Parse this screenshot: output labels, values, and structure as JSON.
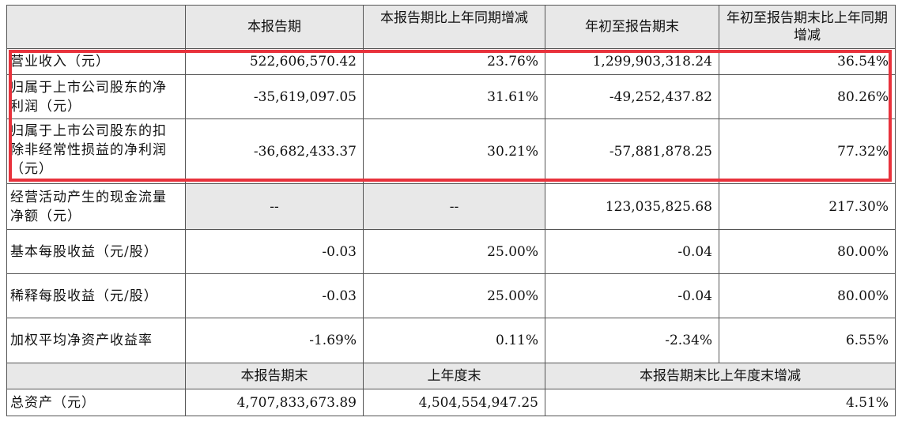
{
  "header": {
    "col1": "本报告期",
    "col2": "本报告期比上年同期增减",
    "col3": "年初至报告期末",
    "col4": "年初至报告期末比上年同期增减"
  },
  "rows": [
    {
      "label": "营业收入（元）",
      "v1": "522,606,570.42",
      "v2": "23.76%",
      "v3": "1,299,903,318.24",
      "v4": "36.54%"
    },
    {
      "label": "归属于上市公司股东的净利润（元）",
      "v1": "-35,619,097.05",
      "v2": "31.61%",
      "v3": "-49,252,437.82",
      "v4": "80.26%"
    },
    {
      "label": "归属于上市公司股东的扣除非经常性损益的净利润（元）",
      "v1": "-36,682,433.37",
      "v2": "30.21%",
      "v3": "-57,881,878.25",
      "v4": "77.32%"
    },
    {
      "label": "经营活动产生的现金流量净额（元）",
      "v1": "--",
      "v2": "--",
      "v3": "123,035,825.68",
      "v4": "217.30%"
    },
    {
      "label": "基本每股收益（元/股）",
      "v1": "-0.03",
      "v2": "25.00%",
      "v3": "-0.04",
      "v4": "80.00%"
    },
    {
      "label": "稀释每股收益（元/股）",
      "v1": "-0.03",
      "v2": "25.00%",
      "v3": "-0.04",
      "v4": "80.00%"
    },
    {
      "label": "加权平均净资产收益率",
      "v1": "-1.69%",
      "v2": "0.11%",
      "v3": "-2.34%",
      "v4": "6.55%"
    }
  ],
  "header2": {
    "col1": "本报告期末",
    "col2": "上年度末",
    "col3": "本报告期末比上年度末增减"
  },
  "assets": {
    "label": "总资产（元）",
    "v1": "4,707,833,673.89",
    "v2": "4,504,554,947.25",
    "v3": "4.51%"
  },
  "colors": {
    "highlight": "#e8323c",
    "header_bg": "#e8e8e8"
  }
}
